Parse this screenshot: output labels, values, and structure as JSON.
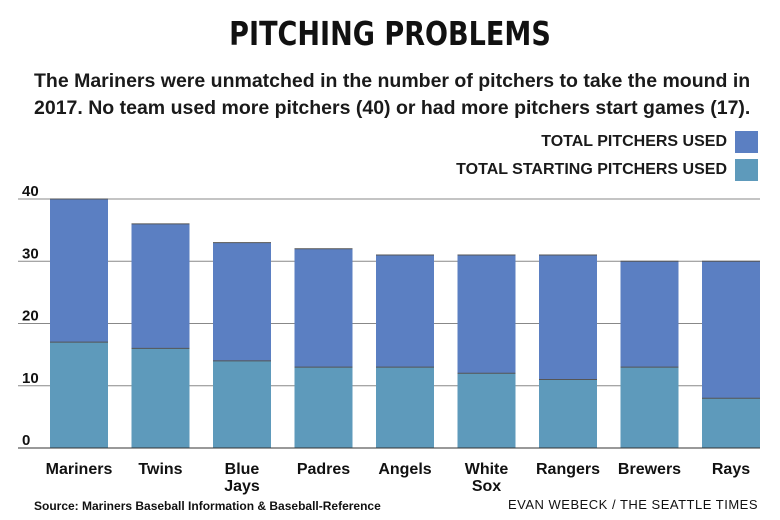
{
  "chart_data": {
    "type": "bar",
    "title": "PITCHING PROBLEMS",
    "subtitle": "The Mariners were unmatched in the number of pitchers to take the mound in 2017. No team used more pitchers (40) or had more pitchers start games (17).",
    "categories": [
      "Mariners",
      "Twins",
      "Blue Jays",
      "Padres",
      "Angels",
      "White Sox",
      "Rangers",
      "Brewers",
      "Rays"
    ],
    "series": [
      {
        "name": "TOTAL PITCHERS USED",
        "values": [
          40,
          36,
          33,
          32,
          31,
          31,
          31,
          30,
          30
        ],
        "color": "#5b7fc2"
      },
      {
        "name": "TOTAL STARTING PITCHERS USED",
        "values": [
          17,
          16,
          14,
          13,
          13,
          12,
          11,
          13,
          8
        ],
        "color": "#5e9abb"
      }
    ],
    "yticks": [
      0,
      10,
      20,
      30,
      40
    ],
    "ylim": [
      0,
      40
    ],
    "grid": true,
    "legend_position": "top-right"
  },
  "footer": {
    "source": "Source: Mariners Baseball Information & Baseball-Reference",
    "credit": "EVAN WEBECK / THE SEATTLE TIMES"
  }
}
